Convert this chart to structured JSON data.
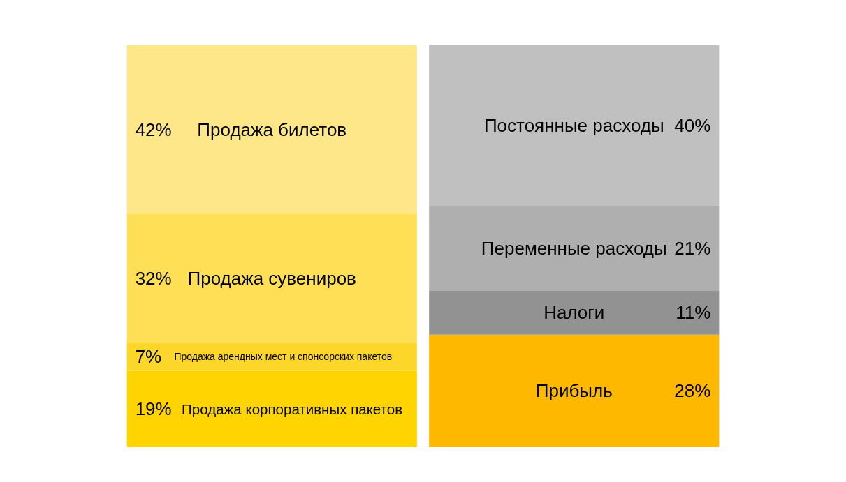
{
  "chart_data": {
    "type": "bar",
    "stacked": true,
    "tick_labels": false,
    "categories": [
      null,
      null
    ],
    "series": [
      {
        "name": "Продажа корпоративных пакетов",
        "color": "#ffd400",
        "values": [
          19,
          null
        ],
        "value_labels": [
          "19%",
          null
        ]
      },
      {
        "name": "Продажа арендных мест и спонсорских пакетов",
        "color": "#fdd62a",
        "values": [
          7,
          null
        ],
        "value_labels": [
          "7%",
          null
        ]
      },
      {
        "name": "Продажа сувениров",
        "color": "#fedf56",
        "values": [
          32,
          null
        ],
        "value_labels": [
          "32%",
          null
        ]
      },
      {
        "name": "Продажа билетов",
        "color": "#fde788",
        "values": [
          42,
          null
        ],
        "value_labels": [
          "42%",
          null
        ]
      },
      {
        "name": "Прибыль",
        "color": "#ffb800",
        "values": [
          null,
          28
        ],
        "value_labels": [
          null,
          "28%"
        ]
      },
      {
        "name": "Налоги",
        "color": "#929292",
        "values": [
          null,
          11
        ],
        "value_labels": [
          null,
          "11%"
        ]
      },
      {
        "name": "Переменные расходы",
        "color": "#afafaf",
        "values": [
          null,
          21
        ],
        "value_labels": [
          null,
          "21%"
        ]
      },
      {
        "name": "Постоянные расходы",
        "color": "#c0c0c0",
        "values": [
          null,
          40
        ],
        "value_labels": [
          null,
          "40%"
        ]
      }
    ]
  }
}
